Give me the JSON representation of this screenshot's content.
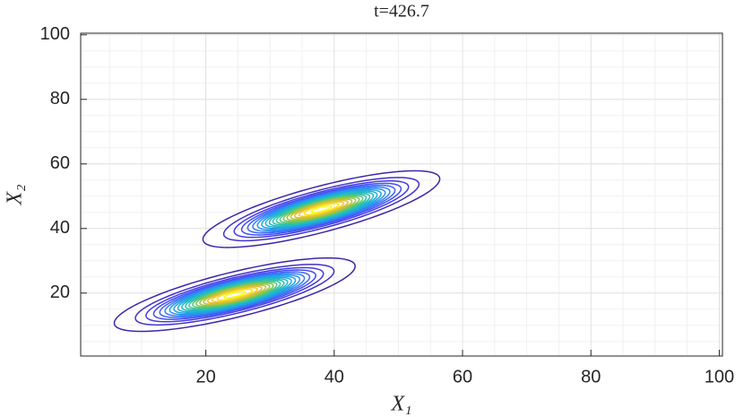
{
  "chart_data": {
    "type": "contour",
    "title": "t=426.7",
    "xlabel": "X₁",
    "ylabel": "X₂",
    "xlim": [
      0.5,
      100.5
    ],
    "ylim": [
      0.5,
      100.5
    ],
    "xticks": [
      20,
      40,
      60,
      80,
      100
    ],
    "yticks": [
      20,
      40,
      60,
      80,
      100
    ],
    "grid": true,
    "minor_grid_step": 5,
    "components": [
      {
        "center": [
          38,
          46
        ],
        "sigma": [
          7.5,
          2.3
        ],
        "angle": 30
      },
      {
        "center": [
          24.5,
          19.5
        ],
        "sigma": [
          7.5,
          2.3
        ],
        "angle": 28
      }
    ],
    "levels": [
      0.02,
      0.07,
      0.12,
      0.17,
      0.22,
      0.27,
      0.32,
      0.37,
      0.42,
      0.47,
      0.52,
      0.57,
      0.62,
      0.67,
      0.72,
      0.77,
      0.82,
      0.87,
      0.92,
      0.97
    ],
    "colormap": [
      "#3e26a8",
      "#4743f8",
      "#2d8cf3",
      "#1ab2d8",
      "#32c5a0",
      "#8ac845",
      "#ecba31",
      "#f9fb15"
    ]
  }
}
